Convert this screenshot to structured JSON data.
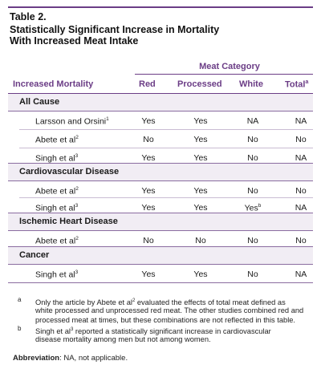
{
  "title": {
    "line1": "Table 2.",
    "line2": "Statistically Significant Increase in Mortality",
    "line3": "With Increased Meat Intake"
  },
  "header": {
    "category_label": "Meat Category",
    "row_header": "Increased Mortality",
    "columns": [
      "Red",
      "Processed",
      "White",
      "Total"
    ],
    "total_sup": "a"
  },
  "sections": [
    {
      "label": "All Cause",
      "rows": [
        {
          "study": "Larsson and Orsini",
          "ref": "1",
          "values": [
            "Yes",
            "Yes",
            "NA",
            "NA"
          ]
        },
        {
          "study": "Abete et al",
          "ref": "2",
          "values": [
            "No",
            "Yes",
            "No",
            "No"
          ]
        },
        {
          "study": "Singh et al",
          "ref": "3",
          "values": [
            "Yes",
            "Yes",
            "No",
            "NA"
          ]
        }
      ]
    },
    {
      "label": "Cardiovascular Disease",
      "rows": [
        {
          "study": "Abete et al",
          "ref": "2",
          "values": [
            "Yes",
            "Yes",
            "No",
            "No"
          ]
        },
        {
          "study": "Singh et al",
          "ref": "3",
          "values": [
            "Yes",
            "Yes",
            "Yes",
            "NA"
          ],
          "white_sup": "b"
        }
      ]
    },
    {
      "label": "Ischemic Heart Disease",
      "rows": [
        {
          "study": "Abete et al",
          "ref": "2",
          "values": [
            "No",
            "No",
            "No",
            "No"
          ]
        }
      ]
    },
    {
      "label": "Cancer",
      "rows": [
        {
          "study": "Singh et al",
          "ref": "3",
          "values": [
            "Yes",
            "Yes",
            "No",
            "NA"
          ]
        }
      ]
    }
  ],
  "footnotes": {
    "a_mark": "a",
    "a_line1_pre": "Only the article by Abete et al",
    "a_line1_ref": "2",
    "a_line1_post": " evaluated the effects of total meat defined as",
    "a_line2": "white processed and unprocessed red meat. The other studies combined red and",
    "a_line3": "processed meat at times, but these combinations are not reflected in this table.",
    "b_mark": "b",
    "b_line1_pre": "Singh et al",
    "b_line1_ref": "3",
    "b_line1_post": " reported a statistically significant increase in cardiovascular",
    "b_line2": "disease mortality among men but not among women."
  },
  "abbreviation": {
    "label": "Abbreviation",
    "text": ": NA, not applicable."
  },
  "colors": {
    "accent": "#6b3d86",
    "section_bg": "#f1edf4"
  }
}
